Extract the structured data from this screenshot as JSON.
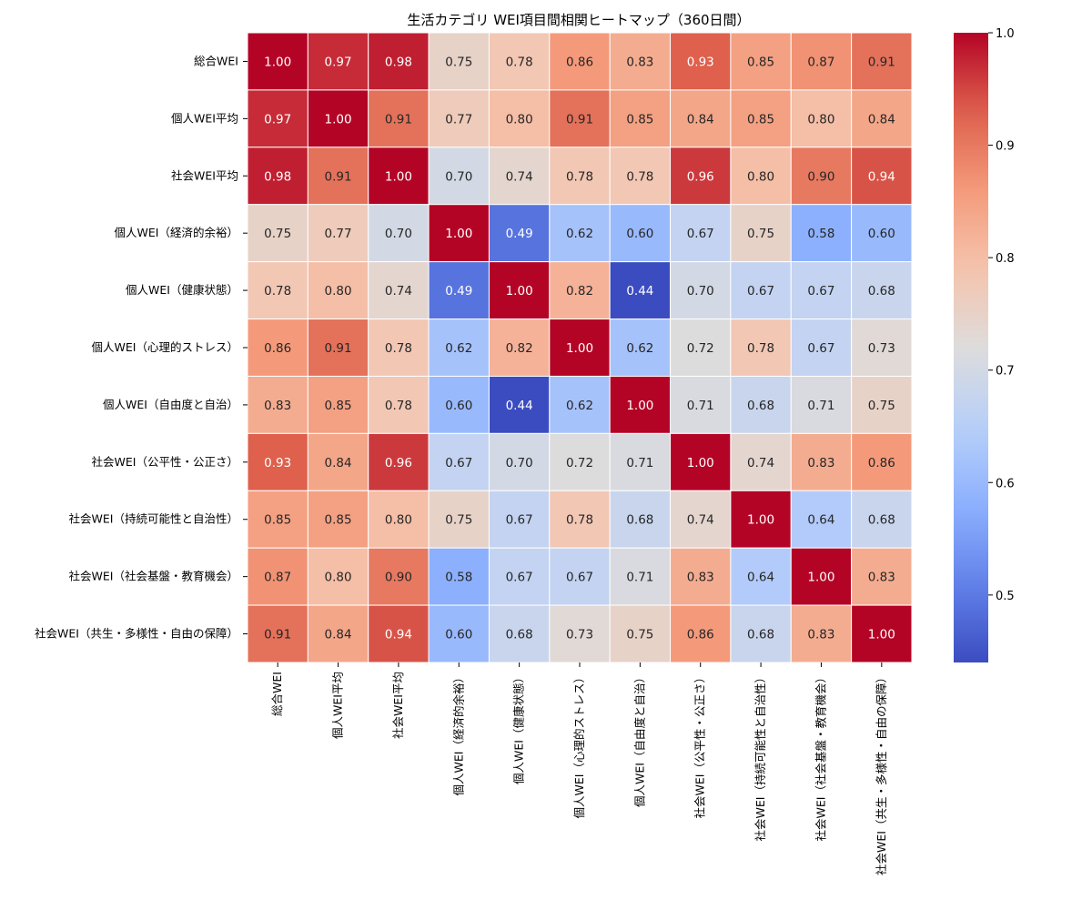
{
  "chart_data": {
    "type": "heatmap",
    "title": "生活カテゴリ WEI項目間相関ヒートマップ（360日間）",
    "labels": [
      "総合WEI",
      "個人WEI平均",
      "社会WEI平均",
      "個人WEI（経済的余裕）",
      "個人WEI（健康状態）",
      "個人WEI（心理的ストレス）",
      "個人WEI（自由度と自治）",
      "社会WEI（公平性・公正さ）",
      "社会WEI（持続可能性と自治性）",
      "社会WEI（社会基盤・教育機会）",
      "社会WEI（共生・多様性・自由の保障）"
    ],
    "values": [
      [
        1.0,
        0.97,
        0.98,
        0.75,
        0.78,
        0.86,
        0.83,
        0.93,
        0.85,
        0.87,
        0.91
      ],
      [
        0.97,
        1.0,
        0.91,
        0.77,
        0.8,
        0.91,
        0.85,
        0.84,
        0.85,
        0.8,
        0.84
      ],
      [
        0.98,
        0.91,
        1.0,
        0.7,
        0.74,
        0.78,
        0.78,
        0.96,
        0.8,
        0.9,
        0.94
      ],
      [
        0.75,
        0.77,
        0.7,
        1.0,
        0.49,
        0.62,
        0.6,
        0.67,
        0.75,
        0.58,
        0.6
      ],
      [
        0.78,
        0.8,
        0.74,
        0.49,
        1.0,
        0.82,
        0.44,
        0.7,
        0.67,
        0.67,
        0.68
      ],
      [
        0.86,
        0.91,
        0.78,
        0.62,
        0.82,
        1.0,
        0.62,
        0.72,
        0.78,
        0.67,
        0.73
      ],
      [
        0.83,
        0.85,
        0.78,
        0.6,
        0.44,
        0.62,
        1.0,
        0.71,
        0.68,
        0.71,
        0.75
      ],
      [
        0.93,
        0.84,
        0.96,
        0.67,
        0.7,
        0.72,
        0.71,
        1.0,
        0.74,
        0.83,
        0.86
      ],
      [
        0.85,
        0.85,
        0.8,
        0.75,
        0.67,
        0.78,
        0.68,
        0.74,
        1.0,
        0.64,
        0.68
      ],
      [
        0.87,
        0.8,
        0.9,
        0.58,
        0.67,
        0.67,
        0.71,
        0.83,
        0.64,
        1.0,
        0.83
      ],
      [
        0.91,
        0.84,
        0.94,
        0.6,
        0.68,
        0.73,
        0.75,
        0.86,
        0.68,
        0.83,
        1.0
      ]
    ],
    "value_range": [
      0.44,
      1.0
    ],
    "colormap": "coolwarm",
    "colorbar": {
      "ticks": [
        0.5,
        0.6,
        0.7,
        0.8,
        0.9,
        1.0
      ],
      "tick_labels": [
        "0.5",
        "0.6",
        "0.7",
        "0.8",
        "0.9",
        "1.0"
      ]
    },
    "annotation_format": "2 decimals"
  }
}
